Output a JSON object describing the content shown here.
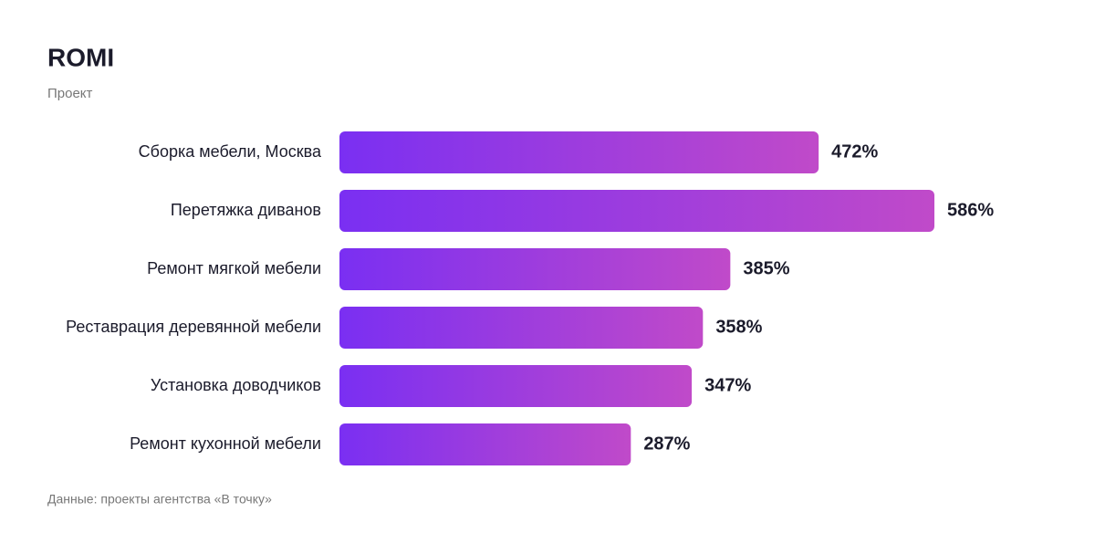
{
  "chart_data": {
    "type": "hbar",
    "title": "ROMI",
    "subtitle": "Проект",
    "categories": [
      "Сборка мебели, Москва",
      "Перетяжка диванов",
      "Ремонт мягкой мебели",
      "Реставрация деревянной мебели",
      "Установка доводчиков",
      "Ремонт кухонной мебели"
    ],
    "values": [
      472,
      586,
      385,
      358,
      347,
      287
    ],
    "value_labels": [
      "472%",
      "586%",
      "385%",
      "358%",
      "347%",
      "287%"
    ],
    "gradient": [
      "#7a2ff2",
      "#c04ac9"
    ],
    "source": "Данные: проекты агентства «В точку»"
  }
}
